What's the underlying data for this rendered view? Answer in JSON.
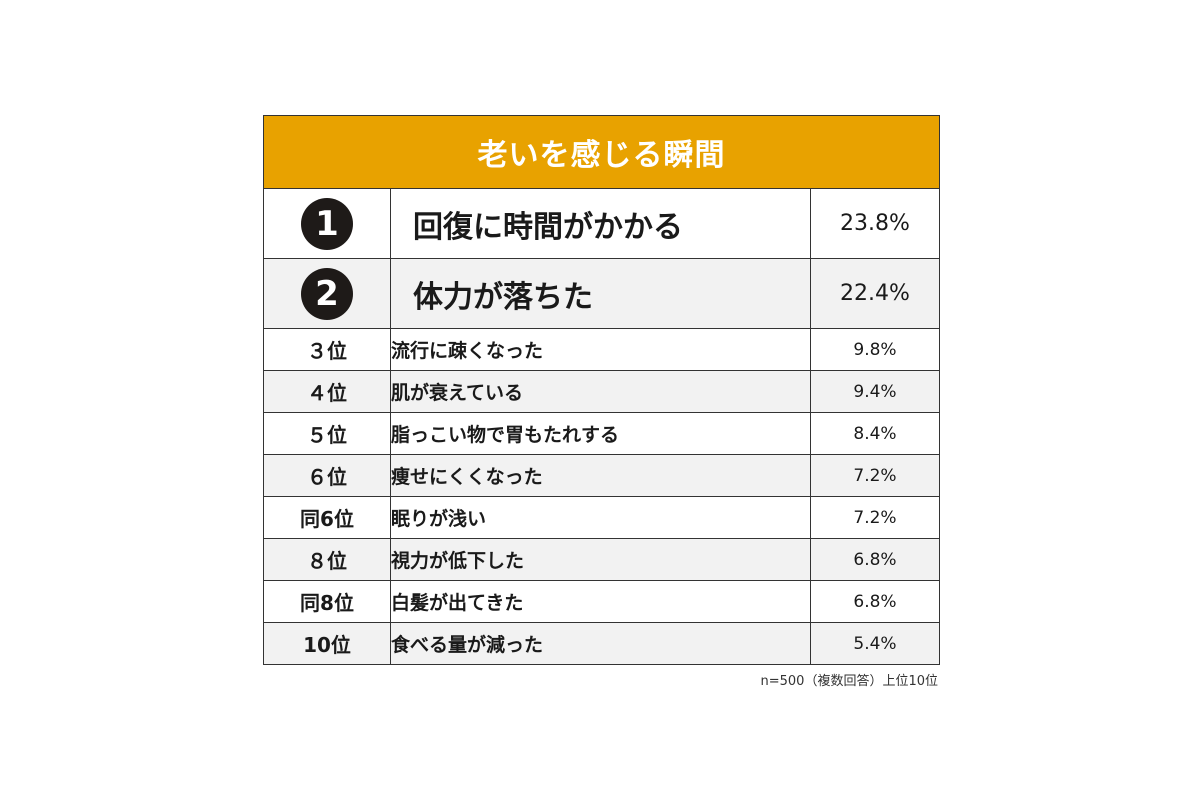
{
  "chart_data": {
    "type": "table",
    "title": "老いを感じる瞬間",
    "columns": [
      "rank",
      "item",
      "percent"
    ],
    "rows": [
      {
        "rank": "1",
        "item": "回復に時間がかかる",
        "value": 23.8,
        "percent": "23.8%"
      },
      {
        "rank": "2",
        "item": "体力が落ちた",
        "value": 22.4,
        "percent": "22.4%"
      },
      {
        "rank": "３位",
        "item": "流行に疎くなった",
        "value": 9.8,
        "percent": "9.8%"
      },
      {
        "rank": "４位",
        "item": "肌が衰えている",
        "value": 9.4,
        "percent": "9.4%"
      },
      {
        "rank": "５位",
        "item": "脂っこい物で胃もたれする",
        "value": 8.4,
        "percent": "8.4%"
      },
      {
        "rank": "６位",
        "item": "痩せにくくなった",
        "value": 7.2,
        "percent": "7.2%"
      },
      {
        "rank": "同6位",
        "item": "眠りが浅い",
        "value": 7.2,
        "percent": "7.2%"
      },
      {
        "rank": "８位",
        "item": "視力が低下した",
        "value": 6.8,
        "percent": "6.8%"
      },
      {
        "rank": "同8位",
        "item": "白髪が出てきた",
        "value": 6.8,
        "percent": "6.8%"
      },
      {
        "rank": "10位",
        "item": "食べる量が減った",
        "value": 5.4,
        "percent": "5.4%"
      }
    ],
    "footnote": "n=500（複数回答）上位10位"
  },
  "colors": {
    "header_bg": "#e8a200",
    "header_text": "#ffffff",
    "badge_bg": "#1e1a18",
    "row_shade": "#f2f2f2"
  }
}
